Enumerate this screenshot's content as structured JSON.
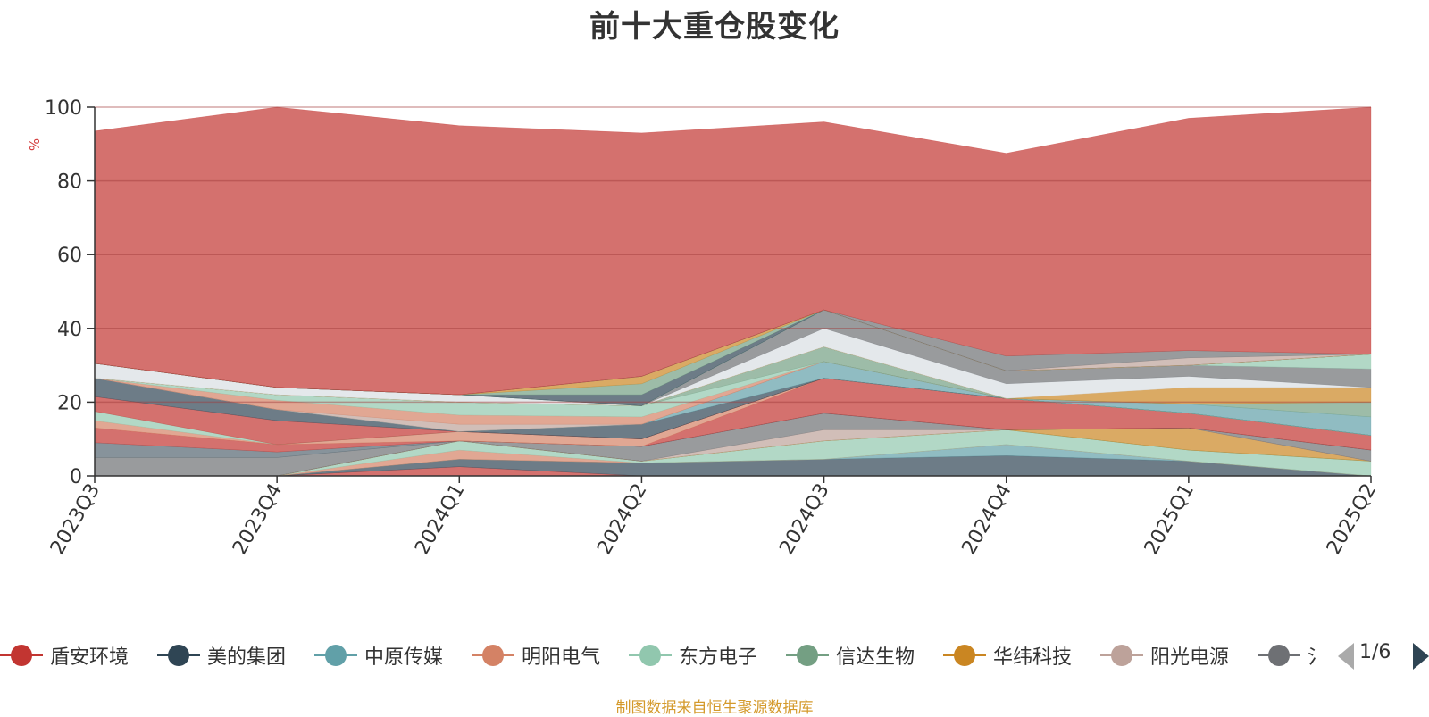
{
  "title": "前十大重仓股变化",
  "source_note": "制图数据来自恒生聚源数据库",
  "legend_page": "1/6",
  "chart_data": {
    "type": "area",
    "title": "前十大重仓股变化",
    "ylabel": "%",
    "ylim": [
      0,
      100
    ],
    "yticks": [
      0,
      20,
      40,
      60,
      80,
      100
    ],
    "grid": true,
    "stacked": true,
    "legend_position": "bottom",
    "categories": [
      "2023Q3",
      "2023Q4",
      "2024Q1",
      "2024Q2",
      "2024Q3",
      "2024Q4",
      "2025Q1",
      "2025Q2"
    ],
    "series": [
      {
        "name": "盾安环境",
        "color": "#c23531",
        "values": [
          0,
          0,
          2.5,
          0,
          0,
          0,
          0,
          0
        ]
      },
      {
        "name": "美的集团",
        "color": "#2f4554",
        "values": [
          0,
          0,
          2,
          3.5,
          4.5,
          5.5,
          4,
          0
        ]
      },
      {
        "name": "中原传媒",
        "color": "#61a0a8",
        "values": [
          0,
          0,
          0,
          0,
          0,
          3,
          0,
          0
        ]
      },
      {
        "name": "明阳电气",
        "color": "#d48265",
        "values": [
          0,
          0,
          2.5,
          0,
          0,
          0,
          0,
          0
        ]
      },
      {
        "name": "东方电子",
        "color": "#91c7ae",
        "values": [
          0,
          0,
          2.5,
          0.5,
          5,
          4,
          3,
          4
        ]
      },
      {
        "name": "信达生物",
        "color": "#749f83",
        "values": [
          0,
          0,
          0,
          0,
          0,
          0,
          0,
          0
        ]
      },
      {
        "name": "华纬科技",
        "color": "#ca8622",
        "values": [
          0,
          0,
          0,
          0,
          0,
          0,
          6,
          0
        ]
      },
      {
        "name": "阳光电源",
        "color": "#bda29a",
        "values": [
          0,
          0,
          0,
          0,
          3,
          0,
          0,
          0
        ]
      },
      {
        "name": "",
        "color": "#6e7074",
        "values": [
          5,
          5,
          0,
          4,
          4.5,
          0,
          0,
          3
        ]
      },
      {
        "name": "",
        "color": "#546570",
        "values": [
          4,
          1.5,
          0,
          0,
          0,
          0,
          0,
          0
        ]
      },
      {
        "name": "",
        "color": "#c23531",
        "values": [
          4,
          2,
          0,
          0,
          9.5,
          8.5,
          4,
          4
        ]
      },
      {
        "name": "",
        "color": "#d48265",
        "values": [
          2,
          0,
          2.5,
          2,
          0,
          0,
          0,
          0
        ]
      },
      {
        "name": "",
        "color": "#91c7ae",
        "values": [
          2.5,
          0,
          0,
          0,
          0,
          0,
          0,
          0
        ]
      },
      {
        "name": "",
        "color": "#c23531",
        "values": [
          4,
          6.5,
          0,
          0,
          0,
          0,
          0,
          0
        ]
      },
      {
        "name": "",
        "color": "#2f4554",
        "values": [
          5,
          3,
          0,
          4,
          0,
          0,
          0,
          0
        ]
      },
      {
        "name": "",
        "color": "#61a0a8",
        "values": [
          0,
          0,
          0,
          0,
          4.5,
          0,
          0,
          0
        ]
      },
      {
        "name": "",
        "color": "#bda29a",
        "values": [
          0,
          0,
          2,
          0,
          0,
          0,
          0,
          0
        ]
      },
      {
        "name": "",
        "color": "#d48265",
        "values": [
          0,
          2.5,
          2.5,
          2,
          0,
          0,
          0,
          0
        ]
      },
      {
        "name": "",
        "color": "#91c7ae",
        "values": [
          0,
          1.5,
          3.5,
          3,
          0,
          0,
          0,
          0
        ]
      },
      {
        "name": "",
        "color": "#749f83",
        "values": [
          0,
          0,
          0,
          0,
          4,
          0,
          0,
          0
        ]
      },
      {
        "name": "",
        "color": "#61a0a8",
        "values": [
          0,
          0,
          0,
          0,
          0,
          0,
          2.5,
          5
        ]
      },
      {
        "name": "",
        "color": "#749f83",
        "values": [
          0,
          0,
          0,
          0,
          0,
          0,
          0,
          4
        ]
      },
      {
        "name": "",
        "color": "#ca8622",
        "values": [
          0,
          0,
          0,
          0,
          0,
          0,
          4.5,
          4
        ]
      },
      {
        "name": "",
        "color": "#d9dee3",
        "values": [
          4,
          2,
          2,
          0,
          5,
          4,
          3,
          0
        ]
      },
      {
        "name": "",
        "color": "#6e7074",
        "values": [
          0,
          0,
          0,
          0,
          5,
          3.5,
          3,
          5
        ]
      },
      {
        "name": "",
        "color": "#91c7ae",
        "values": [
          0,
          0,
          0,
          0,
          0,
          0,
          0,
          4
        ]
      },
      {
        "name": "",
        "color": "#2f4554",
        "values": [
          0,
          0,
          0,
          3,
          0,
          0,
          0,
          0
        ]
      },
      {
        "name": "",
        "color": "#749f83",
        "values": [
          0,
          0,
          0,
          3,
          0,
          0,
          0,
          0
        ]
      },
      {
        "name": "",
        "color": "#ca8622",
        "values": [
          0,
          0,
          0,
          2,
          0,
          0,
          0,
          0
        ]
      },
      {
        "name": "",
        "color": "#bda29a",
        "values": [
          0,
          0,
          0,
          0,
          0,
          0,
          2,
          0
        ]
      },
      {
        "name": "",
        "color": "#6e7074",
        "values": [
          0,
          0,
          0,
          0,
          0,
          4,
          2,
          0
        ]
      },
      {
        "name": "",
        "color": "#c23531",
        "values": [
          63,
          76,
          73,
          66,
          51,
          55,
          63,
          67
        ]
      }
    ]
  }
}
